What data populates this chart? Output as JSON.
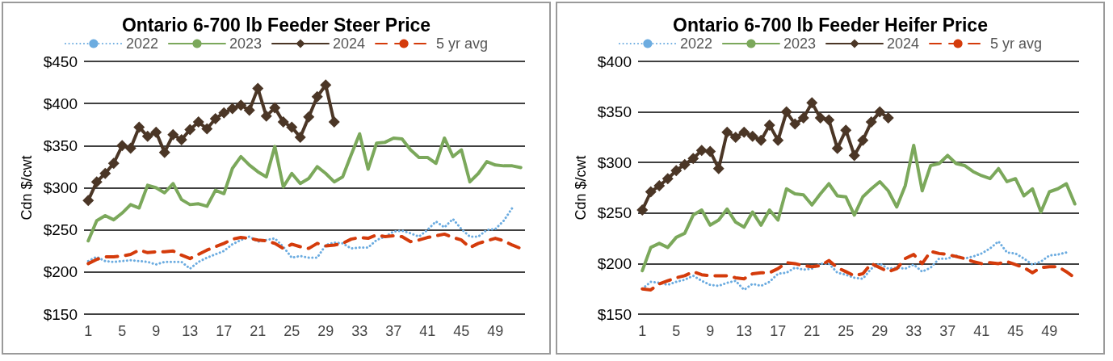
{
  "chart_data": [
    {
      "type": "line",
      "title": "Ontario 6-700 lb Feeder Steer Price",
      "ylabel": "Cdn $/cwt",
      "categories": [
        "1",
        null,
        null,
        null,
        "5",
        null,
        null,
        null,
        "9",
        null,
        null,
        null,
        "13",
        null,
        null,
        null,
        "17",
        null,
        null,
        null,
        "21",
        null,
        null,
        null,
        "25",
        null,
        null,
        null,
        "29",
        null,
        null,
        null,
        "33",
        null,
        null,
        null,
        "37",
        null,
        null,
        null,
        "41",
        null,
        null,
        null,
        "45",
        null,
        null,
        null,
        "49",
        null,
        null,
        null
      ],
      "series": [
        {
          "name": "2022",
          "color": "#6cace0",
          "line_style": "dotted",
          "marker": "none",
          "values": [
            213,
            218,
            213,
            212,
            213,
            214,
            213,
            212,
            209,
            212,
            212,
            212,
            204,
            212,
            217,
            221,
            225,
            233,
            238,
            242,
            236,
            238,
            240,
            230,
            217,
            219,
            217,
            217,
            232,
            235,
            234,
            228,
            229,
            229,
            238,
            242,
            248,
            249,
            246,
            242,
            250,
            260,
            253,
            263,
            251,
            242,
            242,
            250,
            251,
            261,
            276,
            null
          ]
        },
        {
          "name": "2023",
          "color": "#7ba85b",
          "line_style": "solid",
          "marker": "none",
          "values": [
            237,
            261,
            267,
            262,
            270,
            280,
            276,
            303,
            300,
            294,
            305,
            286,
            280,
            281,
            278,
            297,
            293,
            323,
            337,
            327,
            319,
            313,
            349,
            301,
            317,
            305,
            311,
            325,
            317,
            307,
            313,
            339,
            364,
            322,
            353,
            354,
            359,
            358,
            345,
            336,
            336,
            329,
            359,
            337,
            345,
            307,
            317,
            331,
            327,
            326,
            326,
            324
          ]
        },
        {
          "name": "2024",
          "color": "#4b3626",
          "line_style": "solid",
          "marker": "diamond",
          "values": [
            285,
            307,
            317,
            329,
            350,
            347,
            372,
            361,
            366,
            342,
            363,
            357,
            369,
            378,
            370,
            382,
            389,
            394,
            398,
            392,
            418,
            385,
            395,
            378,
            372,
            360,
            384,
            408,
            422,
            378,
            null,
            null,
            null,
            null,
            null,
            null,
            null,
            null,
            null,
            null,
            null,
            null,
            null,
            null,
            null,
            null,
            null,
            null,
            null,
            null,
            null,
            null
          ]
        },
        {
          "name": "5 yr avg",
          "color": "#d43b0b",
          "line_style": "dashed",
          "marker": "none",
          "values": [
            210,
            215,
            218,
            218,
            219,
            221,
            226,
            223,
            224,
            224,
            225,
            220,
            216,
            221,
            226,
            230,
            234,
            239,
            241,
            240,
            238,
            237,
            234,
            228,
            233,
            230,
            228,
            234,
            231,
            232,
            234,
            239,
            241,
            240,
            244,
            242,
            243,
            242,
            236,
            238,
            241,
            243,
            245,
            241,
            238,
            229,
            234,
            237,
            240,
            237,
            232,
            228
          ]
        }
      ],
      "ylim": [
        150,
        450
      ],
      "yticks": [
        {
          "value": 150,
          "label": "$150"
        },
        {
          "value": 200,
          "label": "$200"
        },
        {
          "value": 250,
          "label": "$250"
        },
        {
          "value": 300,
          "label": "$300"
        },
        {
          "value": 350,
          "label": "$350"
        },
        {
          "value": 400,
          "label": "$400"
        },
        {
          "value": 450,
          "label": "$450"
        }
      ],
      "grid": "y",
      "legend": "top"
    },
    {
      "type": "line",
      "title": "Ontario 6-700 lb Feeder Heifer Price",
      "ylabel": "Cdn $/cwt",
      "categories": [
        "1",
        null,
        null,
        null,
        "5",
        null,
        null,
        null,
        "9",
        null,
        null,
        null,
        "13",
        null,
        null,
        null,
        "17",
        null,
        null,
        null,
        "21",
        null,
        null,
        null,
        "25",
        null,
        null,
        null,
        "29",
        null,
        null,
        null,
        "33",
        null,
        null,
        null,
        "37",
        null,
        null,
        null,
        "41",
        null,
        null,
        null,
        "45",
        null,
        null,
        null,
        "49",
        null,
        null,
        null
      ],
      "series": [
        {
          "name": "2022",
          "color": "#6cace0",
          "line_style": "dotted",
          "marker": "none",
          "values": [
            175,
            182,
            181,
            179,
            182,
            184,
            188,
            183,
            179,
            178,
            181,
            183,
            174,
            180,
            178,
            182,
            190,
            191,
            196,
            194,
            195,
            200,
            200,
            191,
            189,
            186,
            185,
            195,
            200,
            195,
            196,
            195,
            199,
            192,
            196,
            205,
            205,
            208,
            205,
            207,
            210,
            215,
            222,
            211,
            210,
            205,
            199,
            202,
            208,
            209,
            211,
            null
          ]
        },
        {
          "name": "2023",
          "color": "#7ba85b",
          "line_style": "solid",
          "marker": "none",
          "values": [
            193,
            216,
            220,
            216,
            226,
            230,
            248,
            253,
            238,
            243,
            254,
            241,
            236,
            251,
            238,
            253,
            243,
            274,
            269,
            268,
            258,
            269,
            279,
            267,
            266,
            248,
            266,
            274,
            281,
            272,
            256,
            277,
            317,
            272,
            297,
            299,
            307,
            299,
            297,
            291,
            287,
            284,
            294,
            281,
            284,
            267,
            274,
            251,
            271,
            274,
            279,
            259
          ]
        },
        {
          "name": "2024",
          "color": "#4b3626",
          "line_style": "solid",
          "marker": "diamond",
          "values": [
            253,
            271,
            277,
            284,
            292,
            298,
            304,
            312,
            311,
            294,
            330,
            325,
            330,
            326,
            322,
            337,
            322,
            350,
            338,
            344,
            359,
            344,
            342,
            314,
            332,
            307,
            322,
            340,
            350,
            344,
            null,
            null,
            null,
            null,
            null,
            null,
            null,
            null,
            null,
            null,
            null,
            null,
            null,
            null,
            null,
            null,
            null,
            null,
            null,
            null,
            null,
            null
          ]
        },
        {
          "name": "5 yr avg",
          "color": "#d43b0b",
          "line_style": "dashed",
          "marker": "none",
          "values": [
            175,
            174,
            180,
            183,
            186,
            188,
            192,
            189,
            188,
            188,
            188,
            186,
            185,
            190,
            191,
            191,
            195,
            201,
            200,
            198,
            197,
            198,
            203,
            196,
            192,
            188,
            190,
            200,
            196,
            192,
            195,
            205,
            209,
            200,
            212,
            210,
            209,
            207,
            205,
            202,
            200,
            201,
            200,
            202,
            199,
            196,
            191,
            196,
            197,
            197,
            192,
            186
          ]
        }
      ],
      "ylim": [
        150,
        400
      ],
      "yticks": [
        {
          "value": 150,
          "label": "$150"
        },
        {
          "value": 200,
          "label": "$200"
        },
        {
          "value": 250,
          "label": "$250"
        },
        {
          "value": 300,
          "label": "$300"
        },
        {
          "value": 350,
          "label": "$350"
        },
        {
          "value": 400,
          "label": "$400"
        }
      ],
      "grid": "y",
      "legend": "top"
    }
  ]
}
